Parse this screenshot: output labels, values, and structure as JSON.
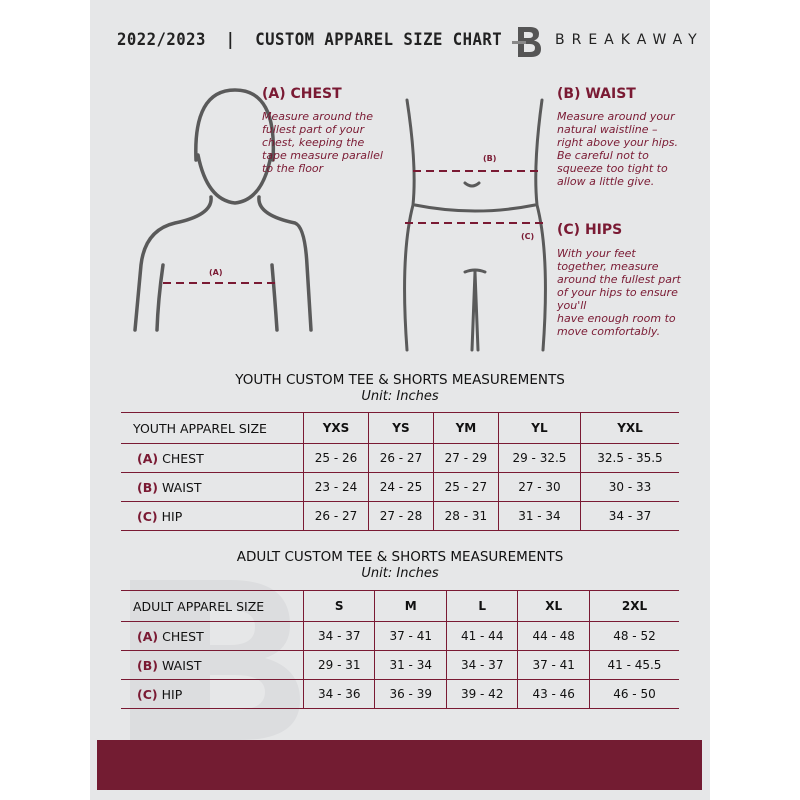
{
  "header": {
    "title": "2022/2023  |  CUSTOM APPAREL SIZE CHART",
    "brand": "BREAKAWAY",
    "logo_letter": "B"
  },
  "measures": {
    "chest": {
      "heading": "(A) CHEST",
      "lines": [
        "Measure around the",
        "fullest part of your",
        "chest, keeping the",
        "tape measure parallel",
        "to the floor"
      ],
      "marker": "(A)"
    },
    "waist": {
      "heading": "(B) WAIST",
      "lines": [
        "Measure around your",
        "natural waistline –",
        "right above your hips.",
        "Be careful not to",
        "squeeze too tight to",
        "allow a little give."
      ],
      "marker": "(B)"
    },
    "hips": {
      "heading": "(C) HIPS",
      "lines": [
        "With your feet",
        "together, measure",
        "around the fullest part",
        "of your hips to ensure",
        "you'll",
        "have enough room to",
        "move comfortably."
      ],
      "marker": "(C)"
    }
  },
  "youth": {
    "title": "YOUTH CUSTOM TEE & SHORTS MEASUREMENTS",
    "unit": "Unit: Inches",
    "header": [
      "YOUTH APPAREL SIZE",
      "YXS",
      "YS",
      "YM",
      "YL",
      "YXL"
    ],
    "rows": [
      {
        "code": "(A)",
        "label": "CHEST",
        "values": [
          "25 - 26",
          "26 - 27",
          "27 - 29",
          "29 - 32.5",
          "32.5 - 35.5"
        ]
      },
      {
        "code": "(B)",
        "label": "WAIST",
        "values": [
          "23 - 24",
          "24 - 25",
          "25 - 27",
          "27 - 30",
          "30 - 33"
        ]
      },
      {
        "code": "(C)",
        "label": "HIP",
        "values": [
          "26 - 27",
          "27 - 28",
          "28 - 31",
          "31 - 34",
          "34 - 37"
        ]
      }
    ]
  },
  "adult": {
    "title": "ADULT CUSTOM TEE & SHORTS MEASUREMENTS",
    "unit": "Unit: Inches",
    "header": [
      "ADULT APPAREL SIZE",
      "S",
      "M",
      "L",
      "XL",
      "2XL"
    ],
    "rows": [
      {
        "code": "(A)",
        "label": "CHEST",
        "values": [
          "34 - 37",
          "37 - 41",
          "41 - 44",
          "44 - 48",
          "48 - 52"
        ]
      },
      {
        "code": "(B)",
        "label": "WAIST",
        "values": [
          "29 - 31",
          "31 - 34",
          "34 - 37",
          "37 - 41",
          "41 - 45.5"
        ]
      },
      {
        "code": "(C)",
        "label": "HIP",
        "values": [
          "34 - 36",
          "36 - 39",
          "39 - 42",
          "43 - 46",
          "46 - 50"
        ]
      }
    ]
  },
  "colors": {
    "accent": "#7a1a33",
    "band": "#731c32",
    "panel": "#e6e7e8"
  }
}
